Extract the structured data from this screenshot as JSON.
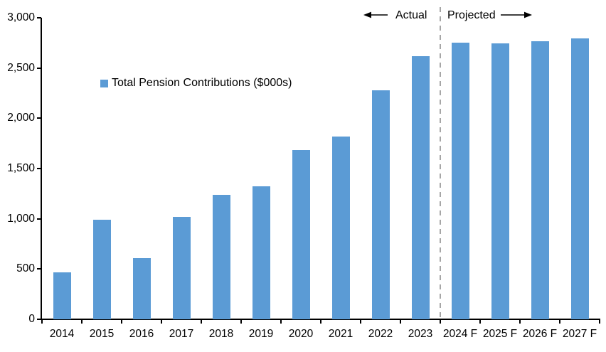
{
  "chart_data": {
    "type": "bar",
    "title": "",
    "legend_label": "Total Pension Contributions ($000s)",
    "legend_position": "upper-left-inside",
    "categories": [
      "2014",
      "2015",
      "2016",
      "2017",
      "2018",
      "2019",
      "2020",
      "2021",
      "2022",
      "2023",
      "2024 F",
      "2025 F",
      "2026 F",
      "2027 F"
    ],
    "values": [
      470,
      990,
      610,
      1020,
      1235,
      1320,
      1685,
      1815,
      2280,
      2615,
      2755,
      2745,
      2770,
      2795
    ],
    "xlabel": "",
    "ylabel": "",
    "ylim": [
      0,
      3000
    ],
    "ytick_step": 500,
    "ytick_labels": [
      "0",
      "500",
      "1,000",
      "1,500",
      "2,000",
      "2,500",
      "3,000"
    ],
    "grid": false,
    "divider_after_category": "2023",
    "annotations": {
      "actual_label": "Actual",
      "projected_label": "Projected"
    },
    "colors": {
      "bar": "#5B9BD5",
      "divider": "#A6A6A6",
      "axis": "#000000",
      "text": "#000000"
    }
  }
}
